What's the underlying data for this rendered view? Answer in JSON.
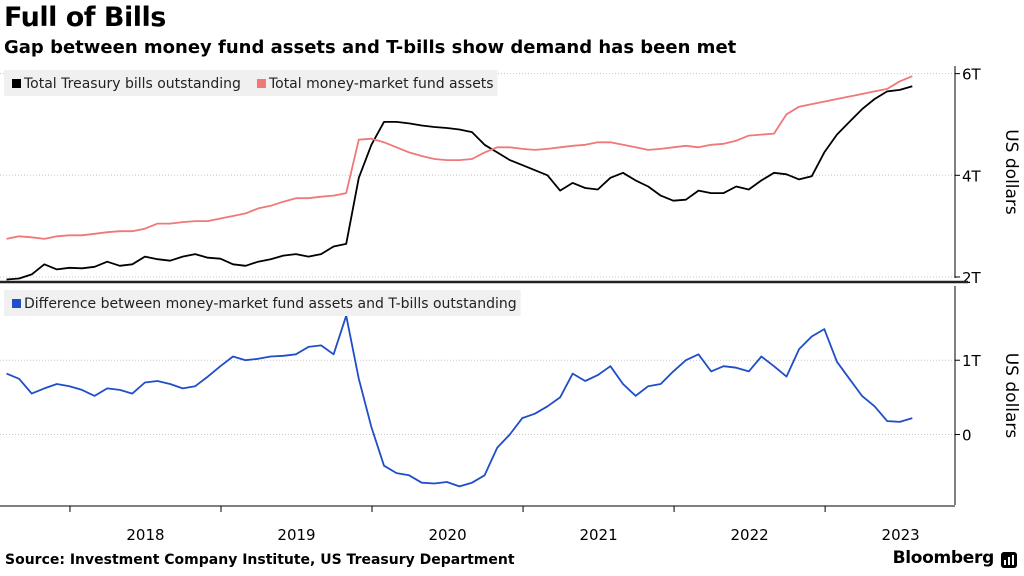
{
  "title": "Full of Bills",
  "subtitle": "Gap between money fund assets and T-bills show demand has been met",
  "source": "Source: Investment Company Institute, US Treasury Department",
  "brand": "Bloomberg",
  "chart_data": [
    {
      "type": "line",
      "ylabel": "US dollars",
      "ylim": [
        1.98,
        6.15
      ],
      "yticks": [
        2,
        4,
        6
      ],
      "ytick_labels": [
        "2T",
        "4T",
        "6T"
      ],
      "grid": true,
      "legend": "top-left",
      "x_start": 2017.58,
      "x_step": 0.0833,
      "series": [
        {
          "name": "Total Treasury bills outstanding",
          "color": "#000000",
          "values": [
            1.95,
            1.97,
            2.05,
            2.25,
            2.15,
            2.18,
            2.17,
            2.2,
            2.3,
            2.22,
            2.25,
            2.4,
            2.35,
            2.32,
            2.4,
            2.45,
            2.38,
            2.36,
            2.25,
            2.22,
            2.3,
            2.35,
            2.42,
            2.45,
            2.4,
            2.45,
            2.6,
            2.65,
            3.95,
            4.6,
            5.05,
            5.05,
            5.02,
            4.98,
            4.95,
            4.93,
            4.9,
            4.85,
            4.6,
            4.45,
            4.3,
            4.2,
            4.1,
            4.0,
            3.7,
            3.85,
            3.75,
            3.72,
            3.95,
            4.05,
            3.9,
            3.78,
            3.6,
            3.5,
            3.52,
            3.7,
            3.65,
            3.65,
            3.78,
            3.72,
            3.9,
            4.05,
            4.02,
            3.92,
            3.98,
            4.45,
            4.8,
            5.05,
            5.3,
            5.5,
            5.65,
            5.68,
            5.75
          ]
        },
        {
          "name": "Total money-market fund assets",
          "color": "#f07878",
          "values": [
            2.75,
            2.8,
            2.78,
            2.75,
            2.8,
            2.82,
            2.82,
            2.85,
            2.88,
            2.9,
            2.9,
            2.95,
            3.05,
            3.05,
            3.08,
            3.1,
            3.1,
            3.15,
            3.2,
            3.25,
            3.35,
            3.4,
            3.48,
            3.55,
            3.55,
            3.58,
            3.6,
            3.65,
            4.7,
            4.72,
            4.65,
            4.55,
            4.45,
            4.38,
            4.32,
            4.3,
            4.3,
            4.32,
            4.45,
            4.55,
            4.55,
            4.52,
            4.5,
            4.52,
            4.55,
            4.58,
            4.6,
            4.65,
            4.65,
            4.6,
            4.55,
            4.5,
            4.52,
            4.55,
            4.58,
            4.55,
            4.6,
            4.62,
            4.68,
            4.78,
            4.8,
            4.82,
            5.2,
            5.35,
            5.4,
            5.45,
            5.5,
            5.55,
            5.6,
            5.65,
            5.7,
            5.85,
            5.95
          ]
        }
      ]
    },
    {
      "type": "line",
      "ylabel": "US dollars",
      "ylim": [
        -0.95,
        2.0
      ],
      "yticks": [
        0,
        1
      ],
      "ytick_labels": [
        "0",
        "1T"
      ],
      "grid": true,
      "legend": "top-left",
      "x_start": 2017.58,
      "x_step": 0.0833,
      "xticks": [
        2018,
        2019,
        2020,
        2021,
        2022,
        2023
      ],
      "xtick_labels": [
        "2018",
        "2019",
        "2020",
        "2021",
        "2022",
        "2023"
      ],
      "series": [
        {
          "name": "Difference between money-market fund assets and T-bills outstanding",
          "color": "#1f4ec7",
          "values": [
            0.82,
            0.75,
            0.55,
            0.62,
            0.68,
            0.65,
            0.6,
            0.52,
            0.62,
            0.6,
            0.55,
            0.7,
            0.72,
            0.68,
            0.62,
            0.65,
            0.78,
            0.92,
            1.05,
            1.0,
            1.02,
            1.05,
            1.06,
            1.08,
            1.18,
            1.2,
            1.08,
            1.6,
            0.75,
            0.1,
            -0.42,
            -0.52,
            -0.55,
            -0.65,
            -0.66,
            -0.64,
            -0.7,
            -0.65,
            -0.55,
            -0.18,
            0.0,
            0.22,
            0.28,
            0.38,
            0.5,
            0.82,
            0.72,
            0.8,
            0.92,
            0.68,
            0.52,
            0.65,
            0.68,
            0.85,
            1.0,
            1.08,
            0.85,
            0.92,
            0.9,
            0.85,
            1.05,
            0.92,
            0.78,
            1.15,
            1.32,
            1.42,
            0.98,
            0.75,
            0.52,
            0.38,
            0.18,
            0.17,
            0.22
          ]
        }
      ]
    }
  ]
}
